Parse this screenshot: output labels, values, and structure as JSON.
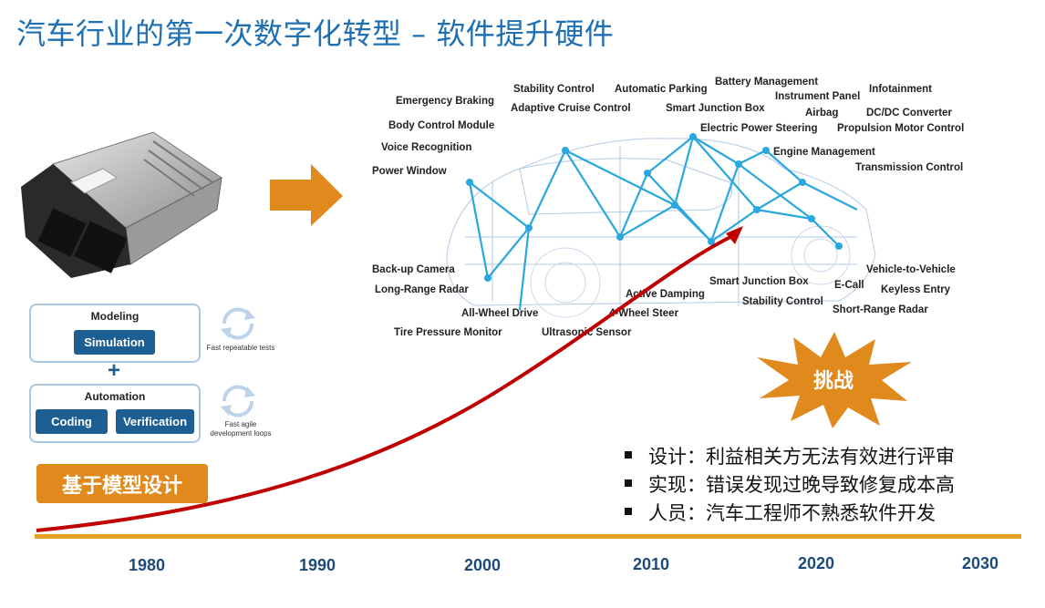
{
  "title": "汽车行业的第一次数字化转型 – 软件提升硬件",
  "features": [
    "Emergency Braking",
    "Stability Control",
    "Automatic Parking",
    "Battery Management",
    "Instrument Panel",
    "Infotainment",
    "Adaptive Cruise Control",
    "Smart Junction Box",
    "Airbag",
    "DC/DC Converter",
    "Body Control Module",
    "Electric Power Steering",
    "Propulsion Motor Control",
    "Voice Recognition",
    "Engine Management",
    "Power Window",
    "Transmission Control",
    "Back-up Camera",
    "Vehicle-to-Vehicle",
    "Long-Range Radar",
    "Smart Junction Box",
    "E-Call",
    "Keyless Entry",
    "Active Damping",
    "Stability Control",
    "Short-Range Radar",
    "All-Wheel Drive",
    "4-Wheel Steer",
    "Tire Pressure Monitor",
    "Ultrasonic Sensor"
  ],
  "mbd": {
    "modeling": "Modeling",
    "simulation": "Simulation",
    "plus": "+",
    "automation": "Automation",
    "coding": "Coding",
    "verification": "Verification",
    "note1": "Fast repeatable tests",
    "note2_line1": "Fast agile",
    "note2_line2": "development loops"
  },
  "badge": "基于模型设计",
  "challenge": "挑战",
  "bullets": [
    "设计：利益相关方无法有效进行评审",
    "实现：错误发现过晚导致修复成本高",
    "人员：汽车工程师不熟悉软件开发"
  ],
  "years": [
    "1980",
    "1990",
    "2000",
    "2010",
    "2020",
    "2030"
  ],
  "colors": {
    "title": "#1f6fb3",
    "accent_orange": "#e08a1e",
    "curve_red": "#c00000",
    "button_blue": "#1e5f93",
    "timeline": "#e8a020"
  }
}
